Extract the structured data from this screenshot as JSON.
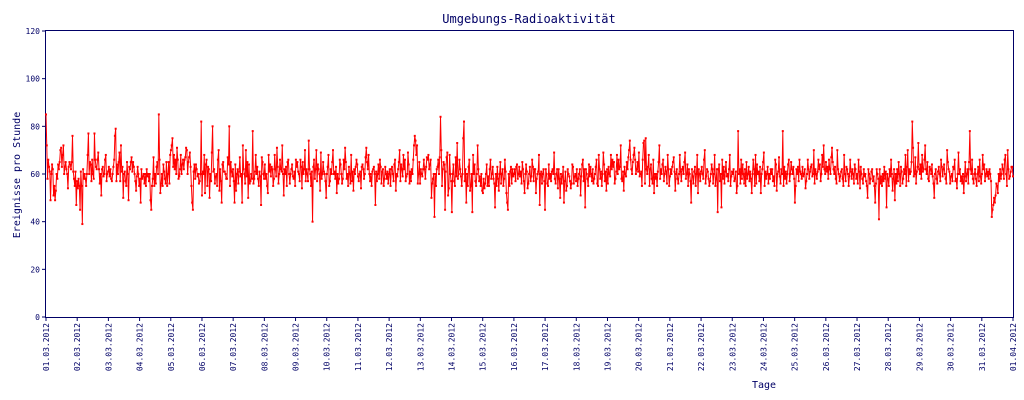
{
  "chart_data": {
    "type": "line",
    "title": "Umgebungs-Radioaktivität",
    "xlabel": "Tage",
    "ylabel": "Ereignisse pro Stunde",
    "ylim": [
      0,
      120
    ],
    "yticks": [
      0,
      20,
      40,
      60,
      80,
      100,
      120
    ],
    "xticks": [
      "01.03.2012",
      "02.03.2012",
      "03.03.2012",
      "04.03.2012",
      "05.03.2012",
      "06.03.2012",
      "07.03.2012",
      "08.03.2012",
      "09.03.2012",
      "10.03.2012",
      "11.03.2012",
      "12.03.2012",
      "13.03.2012",
      "14.03.2012",
      "15.03.2012",
      "16.03.2012",
      "17.03.2012",
      "18.03.2012",
      "19.03.2012",
      "20.03.2012",
      "21.03.2012",
      "22.03.2012",
      "23.03.2012",
      "24.03.2012",
      "25.03.2012",
      "26.03.2012",
      "27.03.2012",
      "28.03.2012",
      "29.03.2012",
      "30.03.2012",
      "31.03.2012",
      "01.04.2012"
    ],
    "grid": false,
    "line_color": "#ff0000",
    "axis_color": "#000066",
    "series": [
      {
        "values": [
          85,
          72,
          58,
          66,
          63,
          61,
          49,
          60,
          64,
          62,
          51,
          55,
          49,
          53,
          60,
          58,
          64,
          62,
          65,
          70,
          71,
          63,
          68,
          72,
          60,
          63,
          65,
          62,
          60,
          54,
          63,
          65,
          64,
          62,
          65,
          76,
          61,
          58,
          55,
          61,
          47,
          57,
          54,
          58,
          55,
          45,
          61,
          55,
          39,
          62,
          58,
          60,
          58,
          55,
          60,
          68,
          77,
          60,
          65,
          64,
          57,
          66,
          60,
          58,
          77,
          66,
          63,
          62,
          66,
          69,
          62,
          56,
          60,
          51,
          62,
          63,
          59,
          60,
          66,
          68,
          57,
          60,
          61,
          63,
          59,
          62,
          58,
          57,
          60,
          63,
          66,
          76,
          79,
          57,
          64,
          60,
          65,
          69,
          57,
          72,
          61,
          63,
          50,
          60,
          61,
          57,
          55,
          65,
          60,
          49,
          63,
          62,
          65,
          67,
          61,
          65,
          63,
          60,
          57,
          53,
          59,
          63,
          60,
          55,
          58,
          48,
          62,
          58,
          59,
          60,
          56,
          60,
          55,
          62,
          59,
          60,
          57,
          60,
          49,
          45,
          55,
          58,
          67,
          55,
          60,
          56,
          63,
          65,
          60,
          85,
          66,
          52,
          56,
          60,
          55,
          64,
          61,
          58,
          56,
          65,
          55,
          60,
          65,
          56,
          68,
          70,
          72,
          75,
          63,
          68,
          62,
          66,
          60,
          71,
          66,
          58,
          59,
          62,
          68,
          60,
          64,
          66,
          62,
          66,
          67,
          71,
          70,
          60,
          65,
          67,
          69,
          63,
          55,
          48,
          45,
          61,
          64,
          58,
          64,
          62,
          59,
          60,
          56,
          57,
          60,
          82,
          51,
          61,
          60,
          68,
          52,
          64,
          66,
          55,
          63,
          62,
          50,
          60,
          57,
          69,
          80,
          61,
          62,
          56,
          59,
          60,
          55,
          66,
          70,
          53,
          62,
          57,
          48,
          64,
          65,
          61,
          61,
          60,
          58,
          58,
          67,
          64,
          80,
          55,
          65,
          61,
          59,
          62,
          57,
          48,
          64,
          53,
          60,
          62,
          56,
          61,
          67,
          59,
          60,
          48,
          72,
          62,
          60,
          56,
          70,
          59,
          65,
          50,
          64,
          56,
          57,
          60,
          58,
          78,
          56,
          58,
          61,
          68,
          60,
          63,
          58,
          55,
          61,
          59,
          47,
          67,
          65,
          60,
          58,
          64,
          58,
          60,
          55,
          52,
          68,
          61,
          64,
          59,
          63,
          62,
          55,
          58,
          68,
          62,
          59,
          71,
          63,
          56,
          60,
          66,
          62,
          61,
          72,
          60,
          51,
          62,
          60,
          63,
          55,
          65,
          66,
          60,
          56,
          60,
          62,
          64,
          59,
          58,
          61,
          55,
          66,
          63,
          65,
          61,
          60,
          57,
          66,
          63,
          54,
          65,
          60,
          62,
          70,
          57,
          62,
          60,
          57,
          74,
          62,
          60,
          55,
          61,
          40,
          63,
          66,
          58,
          62,
          70,
          57,
          64,
          62,
          60,
          53,
          69,
          58,
          60,
          65,
          61,
          60,
          57,
          50,
          60,
          63,
          68,
          55,
          57,
          62,
          60,
          65,
          70,
          60,
          61,
          58,
          63,
          52,
          60,
          56,
          58,
          66,
          64,
          60,
          56,
          58,
          66,
          62,
          71,
          65,
          58,
          60,
          55,
          63,
          60,
          56,
          68,
          57,
          61,
          53,
          62,
          60,
          63,
          66,
          64,
          59,
          57,
          60,
          61,
          54,
          63,
          64,
          62,
          58,
          60,
          67,
          71,
          65,
          62,
          68,
          60,
          57,
          60,
          55,
          61,
          62,
          63,
          60,
          47,
          61,
          57,
          60,
          64,
          58,
          66,
          63,
          56,
          61,
          62,
          55,
          58,
          63,
          60,
          58,
          61,
          56,
          60,
          62,
          55,
          62,
          63,
          60,
          57,
          64,
          66,
          53,
          60,
          59,
          62,
          65,
          70,
          57,
          64,
          62,
          59,
          68,
          62,
          66,
          57,
          59,
          60,
          69,
          64,
          56,
          61,
          57,
          62,
          60,
          66,
          72,
          76,
          74,
          68,
          72,
          56,
          60,
          65,
          56,
          62,
          60,
          59,
          62,
          66,
          62,
          58,
          63,
          67,
          66,
          68,
          62,
          64,
          66,
          50,
          56,
          58,
          60,
          42,
          60,
          55,
          62,
          63,
          66,
          60,
          67,
          84,
          70,
          55,
          62,
          65,
          64,
          45,
          61,
          67,
          69,
          51,
          54,
          68,
          60,
          57,
          44,
          60,
          64,
          57,
          55,
          67,
          59,
          73,
          58,
          60,
          66,
          62,
          59,
          55,
          60,
          75,
          82,
          57,
          62,
          48,
          60,
          55,
          63,
          66,
          53,
          55,
          60,
          44,
          68,
          60,
          64,
          57,
          55,
          60,
          72,
          62,
          57,
          59,
          55,
          60,
          53,
          52,
          58,
          54,
          56,
          60,
          64,
          55,
          59,
          55,
          62,
          66,
          58,
          60,
          63,
          58,
          56,
          46,
          60,
          55,
          63,
          58,
          53,
          60,
          65,
          56,
          60,
          62,
          55,
          58,
          66,
          61,
          52,
          48,
          45,
          60,
          55,
          61,
          63,
          56,
          62,
          59,
          60,
          62,
          57,
          63,
          64,
          58,
          60,
          63,
          59,
          61,
          56,
          65,
          62,
          57,
          52,
          60,
          64,
          61,
          54,
          56,
          60,
          63,
          57,
          59,
          66,
          63,
          57,
          62,
          62,
          52,
          58,
          60,
          61,
          68,
          47,
          60,
          61,
          56,
          60,
          62,
          57,
          45,
          62,
          60,
          56,
          55,
          64,
          58,
          60,
          57,
          61,
          62,
          60,
          69,
          58,
          56,
          60,
          62,
          54,
          62,
          58,
          50,
          60,
          56,
          59,
          63,
          48,
          57,
          61,
          53,
          55,
          62,
          60,
          59,
          57,
          54,
          56,
          64,
          63,
          56,
          59,
          60,
          57,
          62,
          55,
          58,
          60,
          62,
          51,
          59,
          64,
          66,
          57,
          62,
          46,
          62,
          60,
          58,
          55,
          64,
          59,
          63,
          60,
          57,
          62,
          56,
          58,
          60,
          63,
          66,
          56,
          55,
          68,
          62,
          58,
          61,
          55,
          60,
          69,
          64,
          57,
          61,
          53,
          62,
          56,
          63,
          60,
          59,
          68,
          62,
          66,
          63,
          65,
          56,
          58,
          61,
          68,
          60,
          66,
          62,
          63,
          72,
          58,
          57,
          61,
          53,
          63,
          60,
          59,
          65,
          62,
          67,
          70,
          74,
          66,
          62,
          60,
          65,
          68,
          71,
          66,
          60,
          62,
          65,
          61,
          69,
          59,
          60,
          61,
          55,
          66,
          73,
          74,
          56,
          75,
          62,
          60,
          63,
          68,
          55,
          62,
          64,
          58,
          56,
          66,
          52,
          60,
          58,
          60,
          55,
          61,
          65,
          72,
          58,
          62,
          60,
          64,
          66,
          57,
          60,
          63,
          61,
          56,
          68,
          62,
          55,
          59,
          62,
          60,
          63,
          65,
          67,
          61,
          53,
          60,
          62,
          58,
          56,
          60,
          68,
          61,
          57,
          62,
          63,
          60,
          65,
          69,
          58,
          60,
          64,
          55,
          62,
          60,
          57,
          48,
          62,
          59,
          56,
          61,
          63,
          55,
          60,
          68,
          52,
          62,
          60,
          57,
          61,
          63,
          60,
          58,
          66,
          70,
          56,
          59,
          62,
          61,
          58,
          55,
          57,
          60,
          64,
          62,
          56,
          60,
          68,
          55,
          58,
          62,
          44,
          62,
          64,
          57,
          60,
          46,
          66,
          58,
          63,
          56,
          61,
          65,
          59,
          60,
          57,
          62,
          68,
          55,
          59,
          61,
          60,
          62,
          57,
          58,
          61,
          52,
          55,
          78,
          60,
          62,
          56,
          66,
          58,
          64,
          60,
          56,
          62,
          55,
          65,
          58,
          60,
          63,
          57,
          61,
          58,
          52,
          60,
          66,
          62,
          55,
          68,
          56,
          64,
          60,
          61,
          57,
          63,
          52,
          60,
          62,
          65,
          69,
          55,
          61,
          58,
          60,
          63,
          56,
          60,
          58,
          62,
          60,
          62,
          57,
          59,
          55,
          66,
          64,
          53,
          60,
          61,
          67,
          59,
          56,
          62,
          60,
          78,
          55,
          63,
          58,
          61,
          56,
          60,
          64,
          66,
          57,
          60,
          65,
          62,
          60,
          63,
          58,
          48,
          55,
          62,
          60,
          63,
          57,
          66,
          61,
          60,
          58,
          63,
          59,
          60,
          62,
          54,
          57,
          60,
          66,
          62,
          58,
          61,
          63,
          64,
          59,
          60,
          70,
          56,
          62,
          60,
          58,
          61,
          66,
          62,
          64,
          57,
          60,
          68,
          63,
          72,
          62,
          60,
          65,
          61,
          63,
          58,
          66,
          62,
          60,
          67,
          71,
          65,
          62,
          60,
          63,
          58,
          56,
          70,
          62,
          60,
          57,
          59,
          61,
          62,
          58,
          55,
          68,
          60,
          57,
          63,
          62,
          60,
          55,
          59,
          66,
          61,
          58,
          62,
          60,
          56,
          64,
          62,
          58,
          60,
          56,
          66,
          61,
          54,
          63,
          60,
          58,
          56,
          62,
          59,
          60,
          57,
          55,
          50,
          62,
          60,
          56,
          58,
          61,
          62,
          57,
          59,
          55,
          48,
          56,
          62,
          60,
          58,
          41,
          62,
          56,
          59,
          55,
          60,
          57,
          63,
          58,
          61,
          46,
          60,
          58,
          55,
          62,
          59,
          66,
          60,
          53,
          58,
          62,
          49,
          60,
          56,
          62,
          57,
          65,
          60,
          55,
          63,
          61,
          56,
          58,
          62,
          60,
          68,
          55,
          63,
          70,
          57,
          62,
          60,
          61,
          65,
          82,
          71,
          59,
          60,
          67,
          56,
          61,
          63,
          73,
          62,
          60,
          64,
          58,
          68,
          61,
          62,
          66,
          72,
          62,
          60,
          65,
          58,
          57,
          63,
          62,
          60,
          64,
          59,
          56,
          50,
          60,
          62,
          58,
          56,
          61,
          63,
          60,
          57,
          66,
          63,
          59,
          62,
          64,
          60,
          58,
          56,
          70,
          65,
          62,
          61,
          56,
          59,
          60,
          57,
          63,
          62,
          66,
          57,
          58,
          54,
          60,
          69,
          60,
          62,
          57,
          59,
          56,
          60,
          52,
          59,
          65,
          57,
          60,
          62,
          56,
          65,
          78,
          62,
          60,
          66,
          58,
          56,
          60,
          62,
          58,
          55,
          60,
          63,
          57,
          66,
          59,
          56,
          60,
          68,
          62,
          64,
          57,
          60,
          62,
          59,
          61,
          58,
          62,
          60,
          57,
          42,
          45,
          47,
          50,
          48,
          51,
          56,
          55,
          52,
          60,
          57,
          62,
          58,
          60,
          64,
          62,
          58,
          66,
          68,
          60,
          55,
          70,
          62,
          58,
          59,
          61,
          63,
          63,
          59
        ]
      }
    ]
  }
}
